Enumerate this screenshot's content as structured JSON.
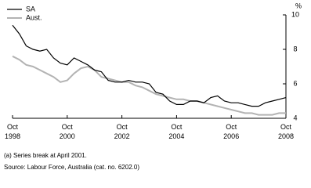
{
  "chart_data": {
    "type": "line",
    "x": [
      "1998-10",
      "1999-01",
      "1999-04",
      "1999-07",
      "1999-10",
      "2000-01",
      "2000-04",
      "2000-07",
      "2000-10",
      "2001-01",
      "2001-04",
      "2001-07",
      "2001-10",
      "2002-01",
      "2002-04",
      "2002-07",
      "2002-10",
      "2003-01",
      "2003-04",
      "2003-07",
      "2003-10",
      "2004-01",
      "2004-04",
      "2004-07",
      "2004-10",
      "2005-01",
      "2005-04",
      "2005-07",
      "2005-10",
      "2006-01",
      "2006-04",
      "2006-07",
      "2006-10",
      "2007-01",
      "2007-04",
      "2007-07",
      "2007-10",
      "2008-01",
      "2008-04",
      "2008-07",
      "2008-10"
    ],
    "series": [
      {
        "name": "SA",
        "color": "#000000",
        "values": [
          9.4,
          8.9,
          8.2,
          8.0,
          7.9,
          8.0,
          7.5,
          7.2,
          7.1,
          7.5,
          7.3,
          7.1,
          6.8,
          6.7,
          6.2,
          6.1,
          6.1,
          6.2,
          6.1,
          6.1,
          6.0,
          5.5,
          5.4,
          5.0,
          4.8,
          4.8,
          5.0,
          5.0,
          4.9,
          5.2,
          5.3,
          5.0,
          4.9,
          4.9,
          4.8,
          4.7,
          4.7,
          4.9,
          5.0,
          5.1,
          5.2
        ]
      },
      {
        "name": "Aust.",
        "color": "#b3b3b3",
        "values": [
          7.6,
          7.4,
          7.1,
          7.0,
          6.8,
          6.6,
          6.4,
          6.1,
          6.2,
          6.6,
          6.9,
          7.0,
          6.8,
          6.4,
          6.3,
          6.2,
          6.1,
          6.1,
          5.9,
          5.8,
          5.6,
          5.4,
          5.3,
          5.2,
          5.1,
          5.1,
          5.0,
          5.0,
          4.9,
          4.8,
          4.7,
          4.6,
          4.5,
          4.4,
          4.3,
          4.3,
          4.2,
          4.2,
          4.2,
          4.3,
          4.3
        ]
      }
    ],
    "xlim": [
      "1998-10",
      "2008-10"
    ],
    "xticks": [
      {
        "value": "1998-10",
        "label": "Oct 1998"
      },
      {
        "value": "2000-10",
        "label": "Oct 2000"
      },
      {
        "value": "2002-10",
        "label": "Oct 2002"
      },
      {
        "value": "2004-10",
        "label": "Oct 2004"
      },
      {
        "value": "2006-10",
        "label": "Oct 2006"
      },
      {
        "value": "2008-10",
        "label": "Oct 2008"
      }
    ],
    "ylim": [
      4,
      10
    ],
    "yticks": [
      4,
      6,
      8,
      10
    ],
    "y_label": "%",
    "legend": "top-left",
    "notes": [
      "(a) Series break at April 2001.",
      "Source: Labour Force, Australia (cat. no. 6202.0)"
    ]
  }
}
